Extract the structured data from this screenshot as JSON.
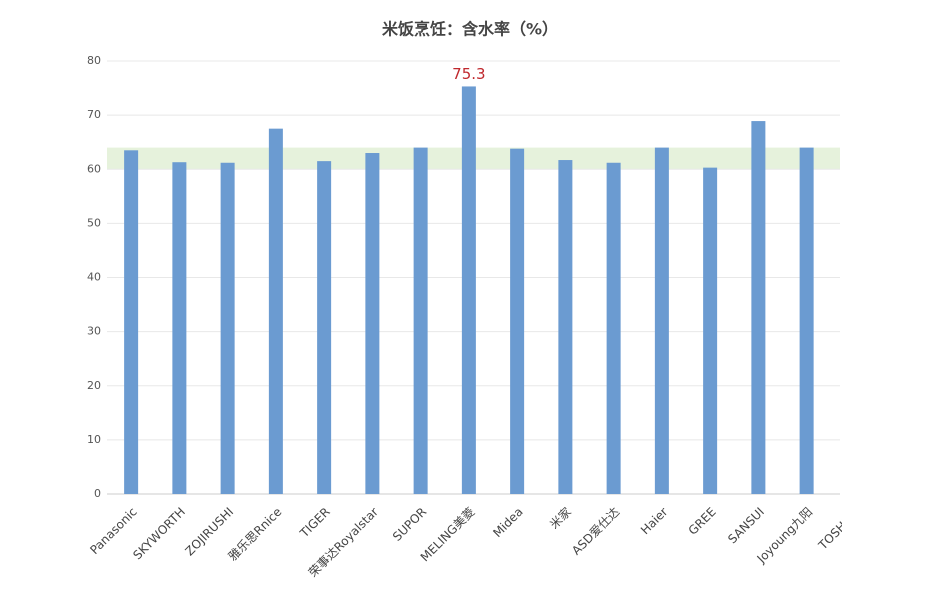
{
  "chart_data": {
    "type": "bar",
    "title": "米饭烹饪：含水率（%）",
    "categories": [
      "Panasonic",
      "SKYWORTH",
      "ZOJIRUSHI",
      "雅乐思Rnice",
      "TIGER",
      "荣事达Royalstar",
      "SUPOR",
      "MELING美菱",
      "Midea",
      "米家",
      "ASD爱仕达",
      "Haier",
      "GREE",
      "SANSUI",
      "Joyoung九阳",
      "TOSHIBA"
    ],
    "values": [
      63.5,
      61.3,
      61.2,
      67.5,
      61.5,
      63,
      64,
      75.3,
      63.8,
      61.7,
      61.2,
      64,
      60.3,
      68.9,
      64,
      null
    ],
    "value_labels": [
      null,
      null,
      null,
      null,
      null,
      null,
      null,
      "75.3",
      null,
      null,
      null,
      null,
      null,
      null,
      null,
      null
    ],
    "color": "#6b9bd1",
    "band": {
      "from": 60,
      "to": 64,
      "color": "#e6f2dc"
    },
    "ylim": [
      0,
      80
    ],
    "yticks": [
      0,
      10,
      20,
      30,
      40,
      50,
      60,
      70,
      80
    ],
    "grid": true
  }
}
